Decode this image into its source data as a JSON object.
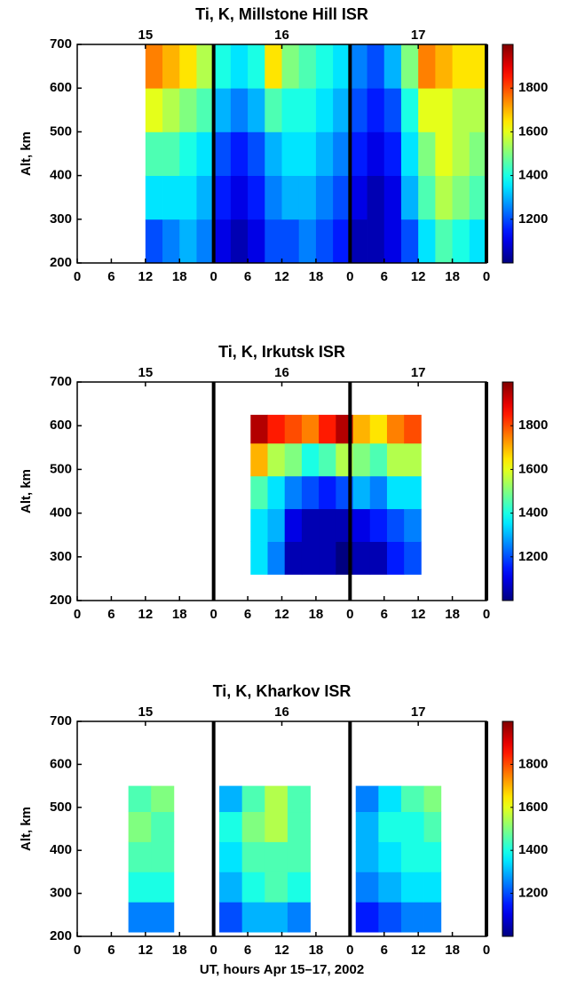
{
  "chart_data": [
    {
      "type": "heatmap",
      "title": "Ti, K, Millstone Hill ISR",
      "ylabel": "Alt, km",
      "colormap": "jet",
      "xlim": [
        0,
        72
      ],
      "ylim": [
        200,
        700
      ],
      "clim": [
        1000,
        2000
      ],
      "xticks": [
        0,
        6,
        12,
        18,
        {
          "value": 24,
          "label": "0"
        },
        {
          "value": 30,
          "label": "6"
        },
        {
          "value": 36,
          "label": "12"
        },
        {
          "value": 42,
          "label": "18"
        },
        {
          "value": 48,
          "label": "0"
        },
        {
          "value": 54,
          "label": "6"
        },
        {
          "value": 60,
          "label": "12"
        },
        {
          "value": 66,
          "label": "18"
        },
        {
          "value": 72,
          "label": "0"
        }
      ],
      "yticks": [
        200,
        300,
        400,
        500,
        600,
        700
      ],
      "cticks": [
        1200,
        1400,
        1600,
        1800
      ],
      "day_labels": [
        {
          "value": 12,
          "label": "15"
        },
        {
          "value": 36,
          "label": "16"
        },
        {
          "value": 60,
          "label": "17"
        }
      ],
      "day_boundaries": [
        24,
        48,
        72
      ],
      "x_edges": [
        12,
        15,
        18,
        21,
        24,
        27,
        30,
        33,
        36,
        39,
        42,
        45,
        48,
        51,
        54,
        57,
        60,
        63,
        66,
        69,
        72
      ],
      "y_edges": [
        200,
        300,
        400,
        500,
        600,
        700
      ],
      "z": [
        [
          1200,
          1250,
          1300,
          1250,
          1100,
          1050,
          1100,
          1200,
          1200,
          1250,
          1200,
          1150,
          1050,
          1050,
          1100,
          1200,
          1350,
          1450,
          1400,
          1350
        ],
        [
          1350,
          1350,
          1350,
          1300,
          1150,
          1100,
          1150,
          1250,
          1300,
          1300,
          1250,
          1200,
          1100,
          1050,
          1100,
          1300,
          1450,
          1550,
          1500,
          1450
        ],
        [
          1450,
          1450,
          1400,
          1350,
          1200,
          1150,
          1200,
          1300,
          1350,
          1350,
          1300,
          1250,
          1150,
          1100,
          1150,
          1350,
          1500,
          1600,
          1550,
          1500
        ],
        [
          1600,
          1550,
          1500,
          1450,
          1300,
          1250,
          1300,
          1450,
          1400,
          1400,
          1350,
          1300,
          1200,
          1150,
          1200,
          1400,
          1600,
          1600,
          1550,
          1550
        ],
        [
          1750,
          1700,
          1650,
          1550,
          1400,
          1350,
          1400,
          1650,
          1500,
          1450,
          1400,
          1350,
          1250,
          1200,
          1300,
          1500,
          1750,
          1700,
          1650,
          1650
        ]
      ]
    },
    {
      "type": "heatmap",
      "title": "Ti, K, Irkutsk ISR",
      "ylabel": "Alt, km",
      "colormap": "jet",
      "xlim": [
        0,
        72
      ],
      "ylim": [
        200,
        700
      ],
      "clim": [
        1000,
        2000
      ],
      "xticks": [
        0,
        6,
        12,
        18,
        {
          "value": 24,
          "label": "0"
        },
        {
          "value": 30,
          "label": "6"
        },
        {
          "value": 36,
          "label": "12"
        },
        {
          "value": 42,
          "label": "18"
        },
        {
          "value": 48,
          "label": "0"
        },
        {
          "value": 54,
          "label": "6"
        },
        {
          "value": 60,
          "label": "12"
        },
        {
          "value": 66,
          "label": "18"
        },
        {
          "value": 72,
          "label": "0"
        }
      ],
      "yticks": [
        200,
        300,
        400,
        500,
        600,
        700
      ],
      "cticks": [
        1200,
        1400,
        1600,
        1800
      ],
      "day_labels": [
        {
          "value": 12,
          "label": "15"
        },
        {
          "value": 36,
          "label": "16"
        },
        {
          "value": 60,
          "label": "17"
        }
      ],
      "day_boundaries": [
        24,
        48,
        72
      ],
      "x_edges": [
        30.5,
        33.5,
        36.5,
        39.5,
        42.5,
        45.5,
        48.5,
        51.5,
        54.5,
        57.5,
        60.5
      ],
      "y_edges": [
        260,
        335,
        410,
        485,
        560,
        625
      ],
      "z": [
        [
          1350,
          1250,
          1050,
          1050,
          1050,
          1000,
          1050,
          1050,
          1150,
          1200
        ],
        [
          1350,
          1300,
          1100,
          1050,
          1050,
          1050,
          1100,
          1150,
          1200,
          1250
        ],
        [
          1450,
          1350,
          1250,
          1200,
          1150,
          1200,
          1300,
          1250,
          1350,
          1350
        ],
        [
          1700,
          1550,
          1500,
          1400,
          1450,
          1550,
          1500,
          1450,
          1550,
          1550
        ],
        [
          1950,
          1850,
          1800,
          1750,
          1850,
          1950,
          1700,
          1650,
          1750,
          1800
        ]
      ]
    },
    {
      "type": "heatmap",
      "title": "Ti, K, Kharkov ISR",
      "ylabel": "Alt, km",
      "xlabel": "UT, hours  Apr 15–17, 2002",
      "colormap": "jet",
      "xlim": [
        0,
        72
      ],
      "ylim": [
        200,
        700
      ],
      "clim": [
        1000,
        2000
      ],
      "xticks": [
        0,
        6,
        12,
        18,
        {
          "value": 24,
          "label": "0"
        },
        {
          "value": 30,
          "label": "6"
        },
        {
          "value": 36,
          "label": "12"
        },
        {
          "value": 42,
          "label": "18"
        },
        {
          "value": 48,
          "label": "0"
        },
        {
          "value": 54,
          "label": "6"
        },
        {
          "value": 60,
          "label": "12"
        },
        {
          "value": 66,
          "label": "18"
        },
        {
          "value": 72,
          "label": "0"
        }
      ],
      "yticks": [
        200,
        300,
        400,
        500,
        600,
        700
      ],
      "cticks": [
        1200,
        1400,
        1600,
        1800
      ],
      "day_labels": [
        {
          "value": 12,
          "label": "15"
        },
        {
          "value": 36,
          "label": "16"
        },
        {
          "value": 60,
          "label": "17"
        }
      ],
      "day_boundaries": [
        24,
        48,
        72
      ],
      "x_edges": [
        9,
        13,
        17,
        25,
        29,
        33,
        37,
        41,
        49,
        53,
        57,
        61,
        64
      ],
      "y_edges": [
        210,
        280,
        350,
        420,
        490,
        550
      ],
      "z": [
        [
          1250,
          1250,
          null,
          1200,
          1300,
          1300,
          1250,
          null,
          1150,
          1200,
          1250,
          1250
        ],
        [
          1400,
          1400,
          null,
          1300,
          1400,
          1450,
          1400,
          null,
          1250,
          1300,
          1350,
          1350
        ],
        [
          1450,
          1450,
          null,
          1350,
          1450,
          1450,
          1450,
          null,
          1300,
          1350,
          1400,
          1400
        ],
        [
          1500,
          1450,
          null,
          1400,
          1500,
          1550,
          1450,
          null,
          1300,
          1400,
          1400,
          1450
        ],
        [
          1450,
          1500,
          null,
          1300,
          1450,
          1550,
          1450,
          null,
          1250,
          1350,
          1450,
          1500
        ]
      ]
    }
  ]
}
